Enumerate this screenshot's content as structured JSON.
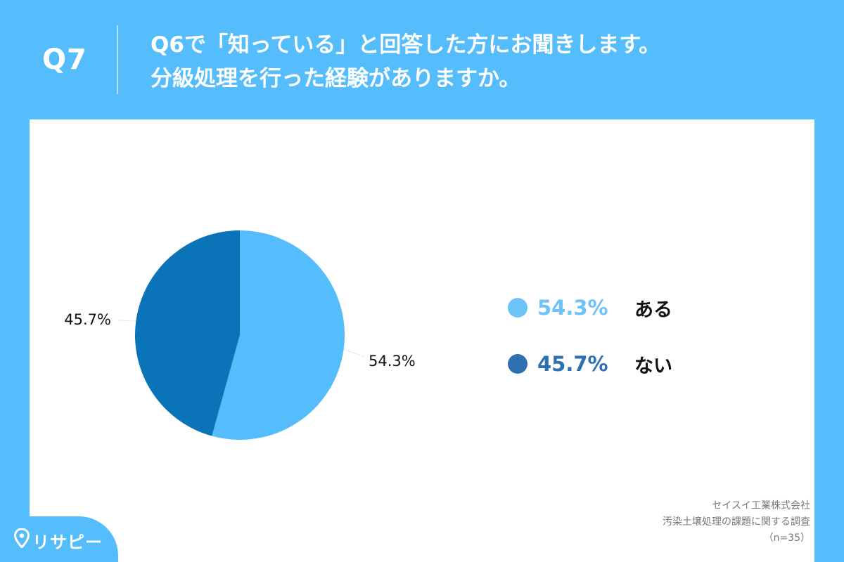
{
  "header": {
    "question_number": "Q7",
    "question_line1": "Q6で「知っている」と回答した方にお聞きします。",
    "question_line2": "分級処理を行った経験がありますか。"
  },
  "chart_data": {
    "type": "pie",
    "categories": [
      "ある",
      "ない"
    ],
    "values": [
      54.3,
      45.7
    ],
    "value_labels": [
      "54.3%",
      "45.7%"
    ],
    "colors": [
      "#55bdfb",
      "#0b73b8"
    ],
    "legend_colors": [
      "#6cc3f8",
      "#2f70b3"
    ],
    "start_angle_deg": 0,
    "direction": "clockwise",
    "legend_placement": "right"
  },
  "legend": {
    "items": [
      {
        "percent": "54.3%",
        "label": "ある"
      },
      {
        "percent": "45.7%",
        "label": "ない"
      }
    ]
  },
  "source": {
    "line1": "セイスイ工業株式会社",
    "line2": "汚染土壌処理の課題に関する調査",
    "line3": "（n=35）"
  },
  "logo": {
    "text": "リサピー",
    "icon": "map-pin-icon"
  }
}
